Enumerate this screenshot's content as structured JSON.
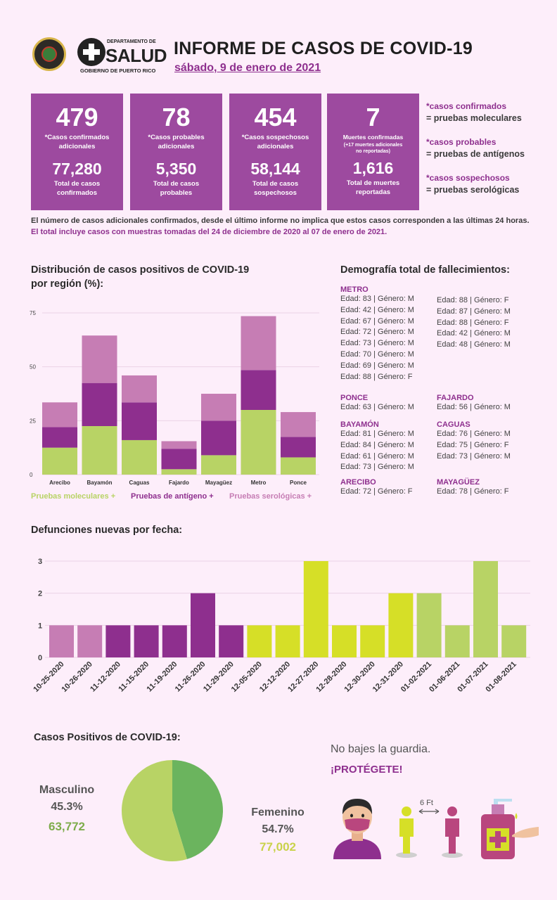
{
  "header": {
    "logo_dept_line": "DEPARTAMENTO DE",
    "logo_word": "SALUD",
    "logo_gob": "GOBIERNO DE PUERTO RICO",
    "title": "INFORME DE CASOS DE COVID-19",
    "date": "sábado, 9 de enero de 2021"
  },
  "boxes": [
    {
      "big": "479",
      "label1": "*Casos confirmados",
      "label2": "adicionales",
      "small": "",
      "total": "77,280",
      "tlabel1": "Total de casos",
      "tlabel2": "confirmados"
    },
    {
      "big": "78",
      "label1": "*Casos probables",
      "label2": "adicionales",
      "small": "",
      "total": "5,350",
      "tlabel1": "Total de casos",
      "tlabel2": "probables"
    },
    {
      "big": "454",
      "label1": "*Casos sospechosos",
      "label2": "adicionales",
      "small": "",
      "total": "58,144",
      "tlabel1": "Total de casos",
      "tlabel2": "sospechosos"
    },
    {
      "big": "7",
      "label1": "Muertes confirmadas",
      "label2": "(+17 muertes adicionales",
      "small": "no reportadas)",
      "total": "1,616",
      "tlabel1": "Total de muertes",
      "tlabel2": "reportadas"
    }
  ],
  "key_legend": [
    {
      "k": "*casos confirmados",
      "v": "= pruebas moleculares"
    },
    {
      "k": "*casos probables",
      "v": "= pruebas de antígenos"
    },
    {
      "k": "*casos sospechosos",
      "v": "= pruebas serológicas"
    }
  ],
  "note": {
    "plain": "El número de casos adicionales confirmados, desde el último informe no implica que estos casos corresponden a las últimas 24 horas. ",
    "highlight": "El total incluye casos con muestras tomadas del 24 de diciembre de 2020 al 07 de enero de 2021."
  },
  "region_section": {
    "title_line1": "Distribución de casos positivos de COVID-19",
    "title_line2": "por región (%):"
  },
  "demo_section": {
    "title": "Demografía total de fallecimientos:"
  },
  "demographics": {
    "col1": [
      {
        "region": "METRO",
        "entries": [
          "Edad: 83 | Género: M",
          "Edad: 42 | Género: M",
          "Edad: 67 | Género: M",
          "Edad: 72 | Género: M",
          "Edad: 73 | Género: M",
          "Edad: 70 | Género: M",
          "Edad: 69 | Género: M",
          "Edad: 88 | Género: F"
        ]
      },
      {
        "region": "PONCE",
        "entries": [
          "Edad: 63 | Género: M"
        ]
      },
      {
        "region": "BAYAMÓN",
        "entries": [
          "Edad: 81 | Género: M",
          "Edad: 84 | Género: M",
          "Edad: 61 | Género: M",
          "Edad: 73 | Género: M"
        ]
      },
      {
        "region": "ARECIBO",
        "entries": [
          "Edad: 72 | Género: F"
        ]
      }
    ],
    "col2": [
      {
        "region": "",
        "entries": [
          "Edad: 88 | Género: F",
          "Edad: 87 | Género: M",
          "Edad: 88 | Género: F",
          "Edad: 42 | Género: M",
          "Edad: 48 | Género: M"
        ]
      },
      {
        "region": "FAJARDO",
        "entries": [
          "Edad: 56 | Género: M"
        ]
      },
      {
        "region": "CAGUAS",
        "entries": [
          "Edad: 76 | Género: M",
          "Edad: 75 | Género: F",
          "Edad: 73 | Género: M"
        ]
      },
      {
        "region": "MAYAGÜEZ",
        "entries": [
          "Edad: 78 | Género: F"
        ]
      }
    ]
  },
  "deaths_section": {
    "title": "Defunciones nuevas por fecha:"
  },
  "pie_section": {
    "title": "Casos Positivos de COVID-19:"
  },
  "message": {
    "line1": "No bajes la guardia.",
    "line2": "¡PROTÉGETE!",
    "distance": "6 Ft"
  },
  "colors": {
    "purple": "#9d4a9f",
    "dark_purple": "#8e2f8e",
    "pink": "#c67db4",
    "lime": "#b8d365",
    "yellow": "#d6df27",
    "green": "#6bb45e"
  },
  "chart_data": [
    {
      "type": "bar",
      "stacked": true,
      "categories": [
        "Arecibo",
        "Bayamón",
        "Caguas",
        "Fajardo",
        "Mayagüez",
        "Metro",
        "Ponce"
      ],
      "series": [
        {
          "name": "Pruebas moleculares +",
          "color": "#b8d365",
          "values": [
            12.5,
            22.5,
            16,
            2.5,
            9,
            30,
            8
          ]
        },
        {
          "name": "Pruebas de antígeno +",
          "color": "#8e2f8e",
          "values": [
            9.5,
            20,
            17.5,
            9.5,
            16,
            18.5,
            9.5
          ]
        },
        {
          "name": "Pruebas serológicas +",
          "color": "#c67db4",
          "values": [
            11.5,
            22,
            12.5,
            3.5,
            12.5,
            25,
            11.5
          ]
        }
      ],
      "yticks": [
        "0",
        "25",
        "50",
        "75"
      ],
      "ylim": [
        0,
        75
      ],
      "legend": "bottom"
    },
    {
      "type": "bar",
      "categories": [
        "10-25-2020",
        "10-26-2020",
        "11-12-2020",
        "11-15-2020",
        "11-19-2020",
        "11-26-2020",
        "11-29-2020",
        "12-05-2020",
        "12-12-2020",
        "12-27-2020",
        "12-28-2020",
        "12-30-2020",
        "12-31-2020",
        "01-02-2021",
        "01-06-2021",
        "01-07-2021",
        "01-08-2021"
      ],
      "values": [
        1,
        1,
        1,
        1,
        1,
        2,
        1,
        1,
        1,
        3,
        1,
        1,
        2,
        2,
        1,
        3,
        1
      ],
      "colors": [
        "#c67db4",
        "#c67db4",
        "#8e2f8e",
        "#8e2f8e",
        "#8e2f8e",
        "#8e2f8e",
        "#8e2f8e",
        "#d6df27",
        "#d6df27",
        "#d6df27",
        "#d6df27",
        "#d6df27",
        "#d6df27",
        "#b8d365",
        "#b8d365",
        "#b8d365",
        "#b8d365"
      ],
      "yticks": [
        "0",
        "1",
        "2",
        "3"
      ],
      "ylim": [
        0,
        3
      ]
    },
    {
      "type": "pie",
      "labels": [
        "Masculino",
        "Femenino"
      ],
      "percent_labels": [
        "45.3%",
        "54.7%"
      ],
      "count_labels": [
        "63,772",
        "77,002"
      ],
      "values": [
        45.3,
        54.7
      ],
      "colors": [
        "#6bb45e",
        "#b8d365"
      ]
    }
  ]
}
